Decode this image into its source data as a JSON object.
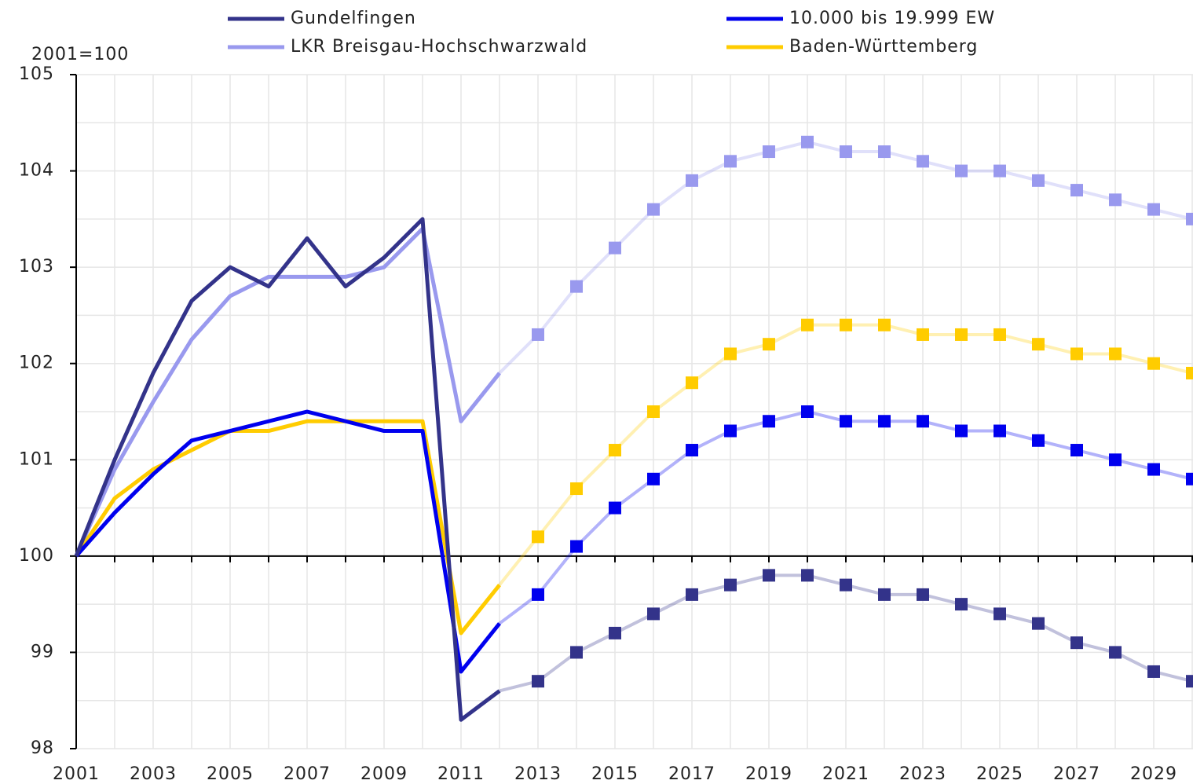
{
  "chart_data": {
    "type": "line",
    "y_axis_label": "2001=100",
    "x": [
      2001,
      2002,
      2003,
      2004,
      2005,
      2006,
      2007,
      2008,
      2009,
      2010,
      2011,
      2012,
      2013,
      2014,
      2015,
      2016,
      2017,
      2018,
      2019,
      2020,
      2021,
      2022,
      2023,
      2024,
      2025,
      2026,
      2027,
      2028,
      2029,
      2030
    ],
    "xlim": [
      2001,
      2030
    ],
    "xticks": [
      2001,
      2003,
      2005,
      2007,
      2009,
      2011,
      2013,
      2015,
      2017,
      2019,
      2021,
      2023,
      2025,
      2027,
      2029
    ],
    "ylim": [
      98,
      105
    ],
    "yticks": [
      98,
      99,
      100,
      101,
      102,
      103,
      104,
      105
    ],
    "grid": true,
    "legend": "top",
    "series": [
      {
        "name": "Gundelfingen",
        "color": "#33338a",
        "values": [
          100,
          101.0,
          101.9,
          102.65,
          103.0,
          102.8,
          103.3,
          102.8,
          103.1,
          103.5,
          98.3,
          98.6,
          null,
          null,
          null,
          null,
          null,
          null,
          null,
          null,
          null,
          null,
          null,
          null,
          null,
          null,
          null,
          null,
          null,
          null
        ],
        "projection_values": [
          null,
          null,
          null,
          null,
          null,
          null,
          null,
          null,
          null,
          null,
          null,
          98.6,
          98.7,
          99.0,
          99.2,
          99.4,
          99.6,
          99.7,
          99.8,
          99.8,
          99.7,
          99.6,
          99.6,
          99.5,
          99.4,
          99.3,
          99.1,
          99.0,
          98.8,
          98.7
        ]
      },
      {
        "name": "10.000 bis 19.999 EW",
        "color": "#0000ee",
        "values": [
          100,
          100.45,
          100.85,
          101.2,
          101.3,
          101.4,
          101.5,
          101.4,
          101.3,
          101.3,
          98.8,
          99.3,
          null,
          null,
          null,
          null,
          null,
          null,
          null,
          null,
          null,
          null,
          null,
          null,
          null,
          null,
          null,
          null,
          null,
          null
        ],
        "projection_values": [
          null,
          null,
          null,
          null,
          null,
          null,
          null,
          null,
          null,
          null,
          null,
          99.3,
          99.6,
          100.1,
          100.5,
          100.8,
          101.1,
          101.3,
          101.4,
          101.5,
          101.4,
          101.4,
          101.4,
          101.3,
          101.3,
          101.2,
          101.1,
          101.0,
          100.9,
          100.8
        ]
      },
      {
        "name": "LKR Breisgau-Hochschwarzwald",
        "color": "#9999ee",
        "values": [
          100,
          100.9,
          101.6,
          102.25,
          102.7,
          102.9,
          102.9,
          102.9,
          103.0,
          103.4,
          101.4,
          101.9,
          null,
          null,
          null,
          null,
          null,
          null,
          null,
          null,
          null,
          null,
          null,
          null,
          null,
          null,
          null,
          null,
          null,
          null
        ],
        "projection_values": [
          null,
          null,
          null,
          null,
          null,
          null,
          null,
          null,
          null,
          null,
          null,
          101.9,
          102.3,
          102.8,
          103.2,
          103.6,
          103.9,
          104.1,
          104.2,
          104.3,
          104.2,
          104.2,
          104.1,
          104.0,
          104.0,
          103.9,
          103.8,
          103.7,
          103.6,
          103.5
        ]
      },
      {
        "name": "Baden-Württemberg",
        "color": "#ffcc00",
        "values": [
          100,
          100.6,
          100.9,
          101.1,
          101.3,
          101.3,
          101.4,
          101.4,
          101.4,
          101.4,
          99.2,
          99.7,
          null,
          null,
          null,
          null,
          null,
          null,
          null,
          null,
          null,
          null,
          null,
          null,
          null,
          null,
          null,
          null,
          null,
          null
        ],
        "projection_values": [
          null,
          null,
          null,
          null,
          null,
          null,
          null,
          null,
          null,
          null,
          null,
          99.7,
          100.2,
          100.7,
          101.1,
          101.5,
          101.8,
          102.1,
          102.2,
          102.4,
          102.4,
          102.4,
          102.3,
          102.3,
          102.3,
          102.2,
          102.1,
          102.1,
          102.0,
          101.9
        ]
      }
    ]
  }
}
